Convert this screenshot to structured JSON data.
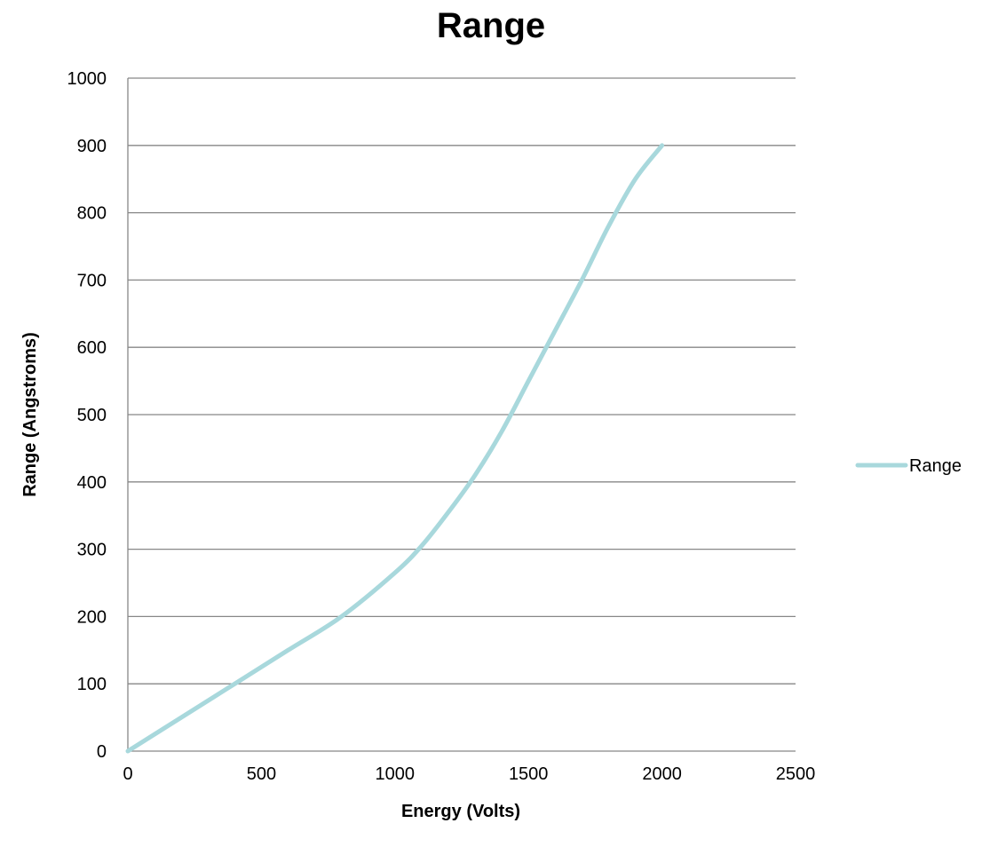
{
  "chart_data": {
    "type": "line",
    "title": "Range",
    "xlabel": "Energy (Volts)",
    "ylabel": "Range (Angstroms)",
    "xlim": [
      0,
      2500
    ],
    "ylim": [
      0,
      1000
    ],
    "x_ticks": [
      "0",
      "500",
      "1000",
      "1500",
      "2000",
      "2500"
    ],
    "y_ticks": [
      "0",
      "100",
      "200",
      "300",
      "400",
      "500",
      "600",
      "700",
      "800",
      "900",
      "1000"
    ],
    "x_tick_values": [
      0,
      500,
      1000,
      1500,
      2000,
      2500
    ],
    "y_tick_values": [
      0,
      100,
      200,
      300,
      400,
      500,
      600,
      700,
      800,
      900,
      1000
    ],
    "grid": "horizontal",
    "legend": "right",
    "series": [
      {
        "name": "Range",
        "color": "#a8d8dc",
        "x": [
          0,
          200,
          400,
          600,
          800,
          1000,
          1100,
          1200,
          1300,
          1400,
          1500,
          1600,
          1700,
          1800,
          1900,
          2000
        ],
        "y": [
          0,
          50,
          100,
          150,
          200,
          265,
          305,
          355,
          410,
          475,
          550,
          625,
          700,
          780,
          850,
          900
        ]
      }
    ]
  }
}
